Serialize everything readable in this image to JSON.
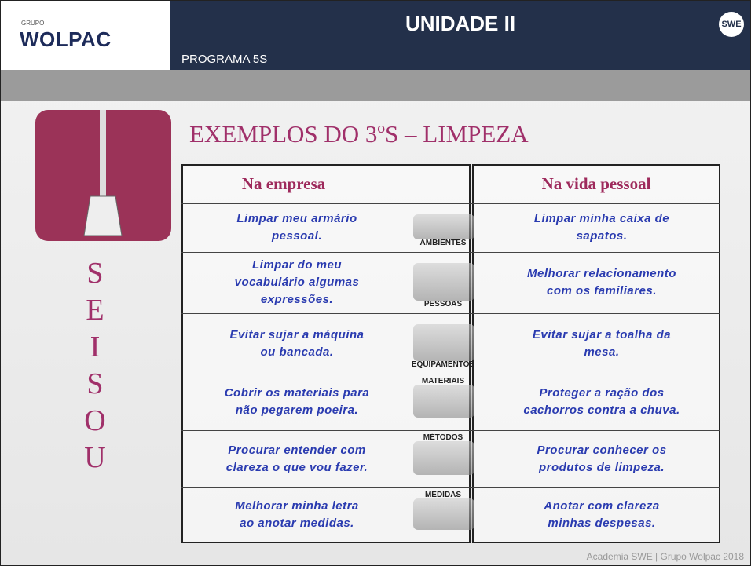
{
  "header": {
    "logo_small": "GRUPO",
    "logo": "WOLPAC",
    "title": "UNIDADE II",
    "subtitle": "PROGRAMA 5S",
    "badge": "SWE"
  },
  "page_title": "EXEMPLOS DO 3ºS – LIMPEZA",
  "side_letters": [
    "S",
    "E",
    "I",
    "S",
    "O",
    "U"
  ],
  "table": {
    "headers": [
      "Na empresa",
      "Na vida pessoal"
    ],
    "rows": [
      {
        "left": "Limpar meu  armário\npessoal.",
        "icon": "AMBIENTES",
        "right": "Limpar minha caixa de\nsapatos."
      },
      {
        "left": "Limpar do meu\nvocabulário algumas\nexpressões.",
        "icon": "PESSOAS",
        "right": "Melhorar relacionamento\ncom os familiares."
      },
      {
        "left": "Evitar sujar a máquina\nou  bancada.",
        "icon": "EQUIPAMENTOS",
        "right": "Evitar sujar a toalha da\nmesa."
      },
      {
        "left": "Cobrir os materiais para\nnão pegarem poeira.",
        "icon": "MATERIAIS",
        "right": "Proteger a ração dos\ncachorros contra a chuva."
      },
      {
        "left": "Procurar entender com\nclareza o que vou fazer.",
        "icon": "MÉTODOS",
        "right": "Procurar conhecer os\nprodutos de limpeza."
      },
      {
        "left": "Melhorar minha letra\nao anotar medidas.",
        "icon": "MEDIDAS",
        "right": "Anotar com clareza\nminhas despesas."
      }
    ]
  },
  "footer": "Academia SWE | Grupo Wolpac 2018"
}
